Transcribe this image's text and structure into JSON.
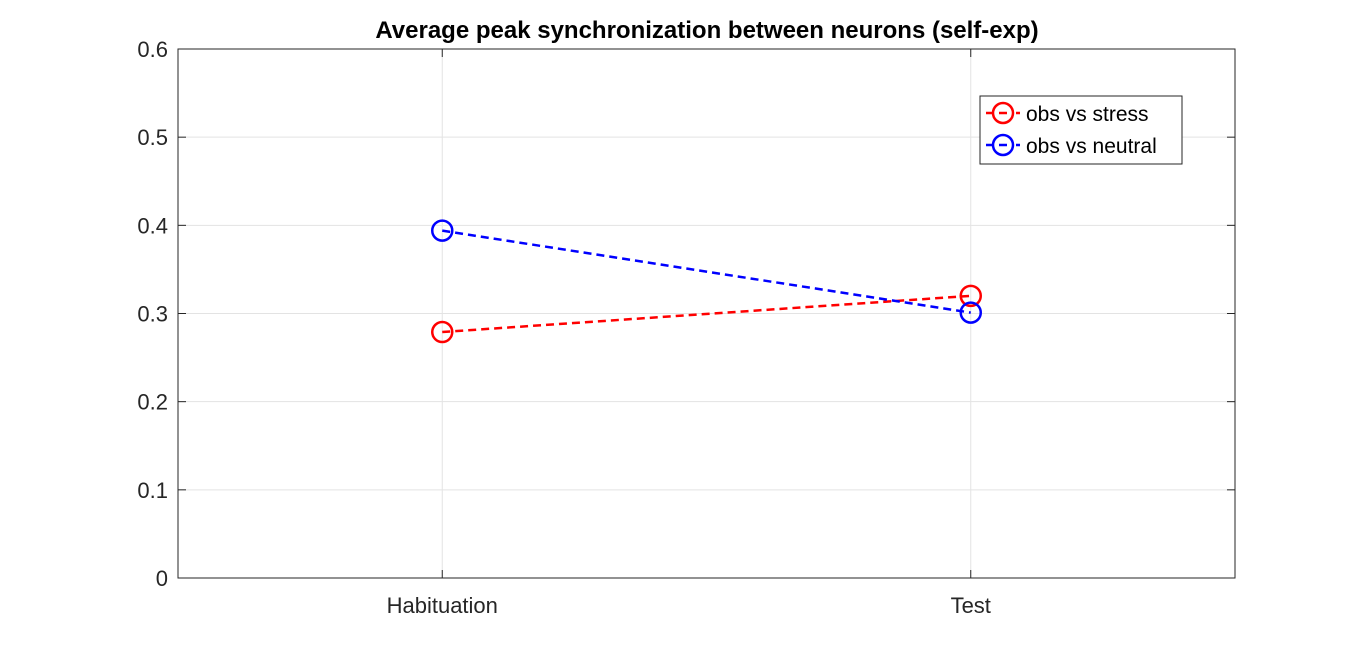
{
  "chart_data": {
    "type": "line",
    "title": "Average peak synchronization between neurons (self-exp)",
    "xlabel": "",
    "ylabel": "",
    "categories": [
      "Habituation",
      "Test"
    ],
    "ylim": [
      0,
      0.6
    ],
    "yticks": [
      "0",
      "0.1",
      "0.2",
      "0.3",
      "0.4",
      "0.5",
      "0.6"
    ],
    "grid": true,
    "legend_position": "top-right",
    "series": [
      {
        "name": "obs vs stress",
        "values": [
          0.279,
          0.32
        ],
        "color": "#ff0000",
        "line_style": "dashed",
        "marker": "circle"
      },
      {
        "name": "obs vs neutral",
        "values": [
          0.394,
          0.301
        ],
        "color": "#0000ff",
        "line_style": "dashed",
        "marker": "circle"
      }
    ]
  }
}
